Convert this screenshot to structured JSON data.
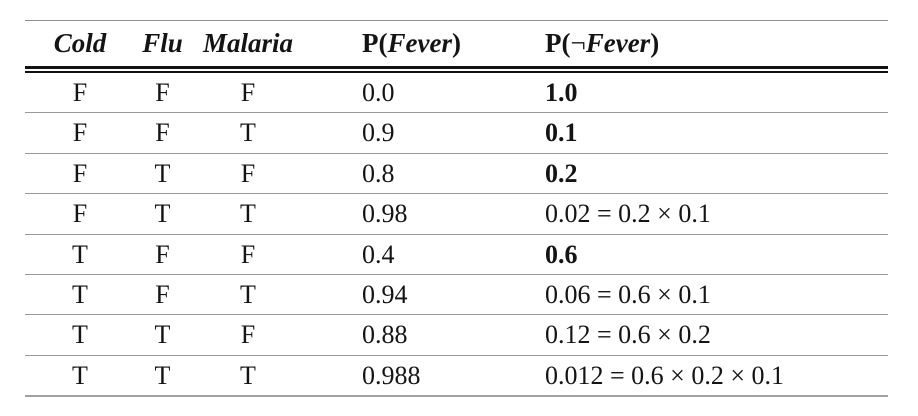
{
  "table": {
    "header": {
      "col1": "Cold",
      "col2": "Flu",
      "col3": "Malaria",
      "col4_prefix": "P(",
      "col4_var": "Fever",
      "col4_suffix": ")",
      "col5_prefix": "P(",
      "col5_neg": "¬",
      "col5_var": "Fever",
      "col5_suffix": ")"
    },
    "rows": [
      {
        "cold": "F",
        "flu": "F",
        "malaria": "F",
        "p_fever": "0.0",
        "p_not_fever": "1.0",
        "bold": true
      },
      {
        "cold": "F",
        "flu": "F",
        "malaria": "T",
        "p_fever": "0.9",
        "p_not_fever": "0.1",
        "bold": true
      },
      {
        "cold": "F",
        "flu": "T",
        "malaria": "F",
        "p_fever": "0.8",
        "p_not_fever": "0.2",
        "bold": true
      },
      {
        "cold": "F",
        "flu": "T",
        "malaria": "T",
        "p_fever": "0.98",
        "p_not_fever": "0.02 = 0.2 × 0.1",
        "bold": false
      },
      {
        "cold": "T",
        "flu": "F",
        "malaria": "F",
        "p_fever": "0.4",
        "p_not_fever": "0.6",
        "bold": true
      },
      {
        "cold": "T",
        "flu": "F",
        "malaria": "T",
        "p_fever": "0.94",
        "p_not_fever": "0.06 = 0.6 × 0.1",
        "bold": false
      },
      {
        "cold": "T",
        "flu": "T",
        "malaria": "F",
        "p_fever": "0.88",
        "p_not_fever": "0.12 = 0.6 × 0.2",
        "bold": false
      },
      {
        "cold": "T",
        "flu": "T",
        "malaria": "T",
        "p_fever": "0.988",
        "p_not_fever": "0.012 = 0.6 × 0.2 × 0.1",
        "bold": false
      }
    ]
  },
  "chart_data": {
    "type": "table",
    "columns": [
      "Cold",
      "Flu",
      "Malaria",
      "P(Fever)",
      "P(¬Fever)"
    ],
    "rows": [
      [
        "F",
        "F",
        "F",
        "0.0",
        "1.0"
      ],
      [
        "F",
        "F",
        "T",
        "0.9",
        "0.1"
      ],
      [
        "F",
        "T",
        "F",
        "0.8",
        "0.2"
      ],
      [
        "F",
        "T",
        "T",
        "0.98",
        "0.02 = 0.2 × 0.1"
      ],
      [
        "T",
        "F",
        "F",
        "0.4",
        "0.6"
      ],
      [
        "T",
        "F",
        "T",
        "0.94",
        "0.06 = 0.6 × 0.1"
      ],
      [
        "T",
        "T",
        "F",
        "0.88",
        "0.12 = 0.6 × 0.2"
      ],
      [
        "T",
        "T",
        "T",
        "0.988",
        "0.012 = 0.6 × 0.2 × 0.1"
      ]
    ]
  }
}
